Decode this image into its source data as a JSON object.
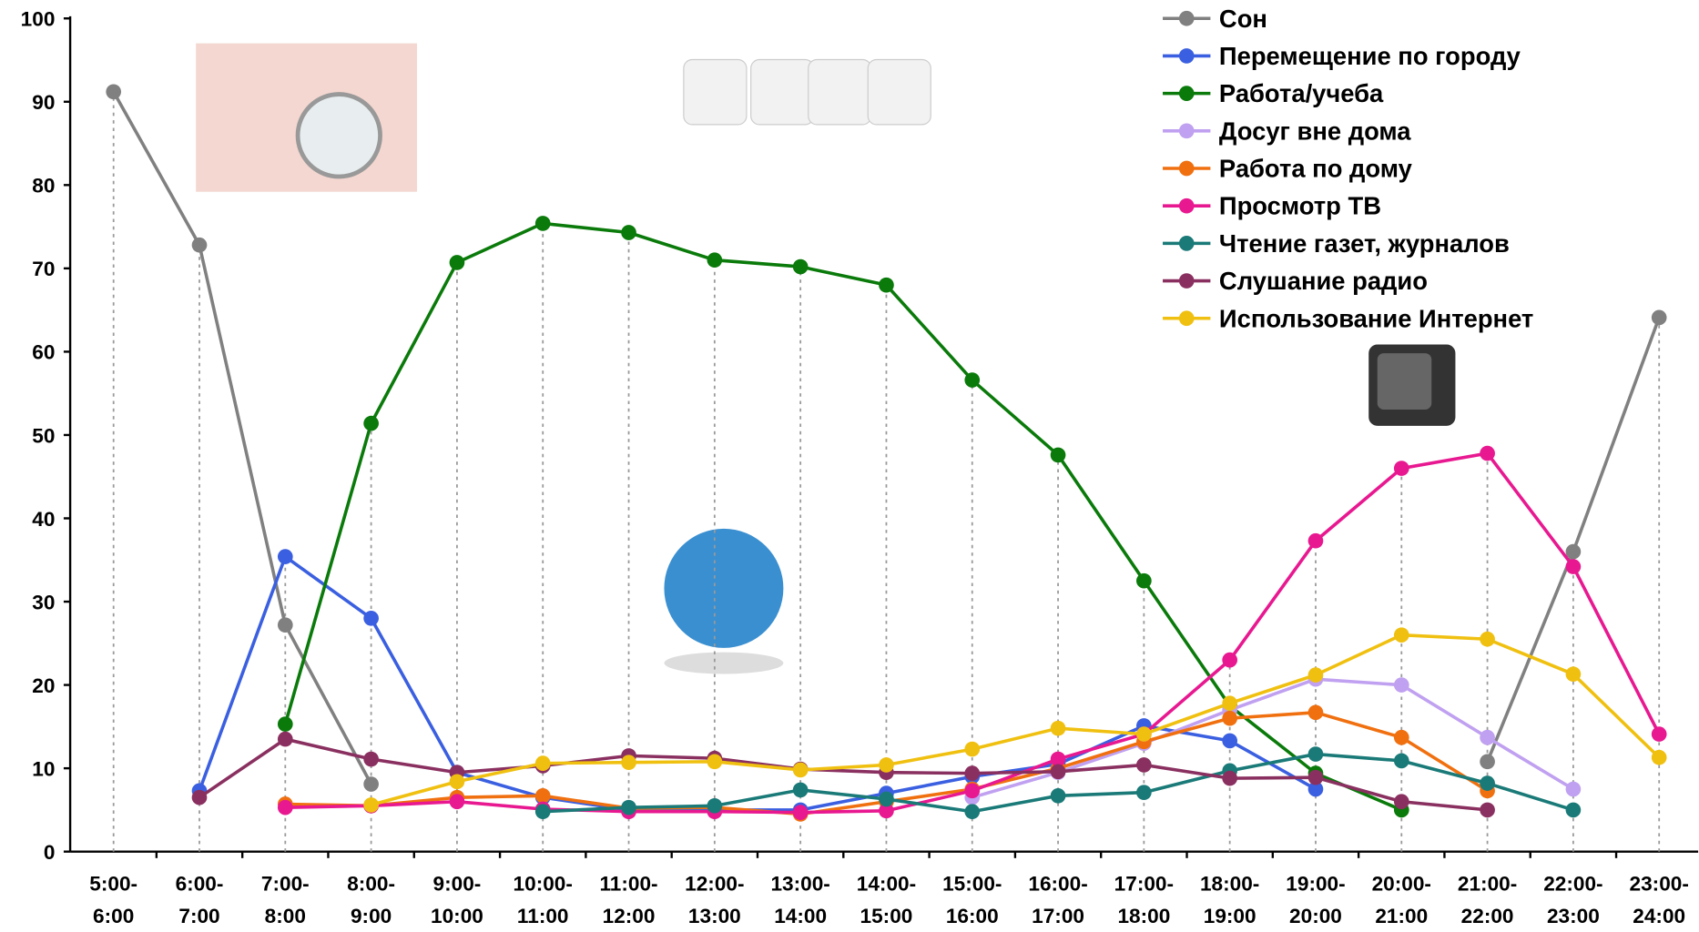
{
  "chart_data": {
    "type": "line",
    "categories": [
      "5:00-\n6:00",
      "6:00-\n7:00",
      "7:00-\n8:00",
      "8:00-\n9:00",
      "9:00-\n10:00",
      "10:00-\n11:00",
      "11:00-\n12:00",
      "12:00-\n13:00",
      "13:00-\n14:00",
      "14:00-\n15:00",
      "15:00-\n16:00",
      "16:00-\n17:00",
      "17:00-\n18:00",
      "18:00-\n19:00",
      "19:00-\n20:00",
      "20:00-\n21:00",
      "21:00-\n22:00",
      "22:00-\n23:00",
      "23:00-\n24:00"
    ],
    "series": [
      {
        "name": "Сон",
        "color": "#808080",
        "values": [
          91.2,
          72.8,
          27.2,
          8.1,
          null,
          null,
          null,
          null,
          null,
          null,
          null,
          null,
          null,
          null,
          null,
          null,
          10.8,
          36,
          64.1
        ]
      },
      {
        "name": "Перемещение по городу",
        "color": "#3a5fe0",
        "values": [
          null,
          7.3,
          35.4,
          28,
          9.5,
          6.5,
          5,
          5,
          5,
          7,
          9,
          10.5,
          15.1,
          13.3,
          7.5,
          null,
          null,
          null,
          null
        ]
      },
      {
        "name": "Работа/учеба",
        "color": "#0a7a0a",
        "values": [
          null,
          null,
          15.3,
          51.4,
          70.7,
          75.4,
          74.3,
          71,
          70.2,
          68,
          56.6,
          47.6,
          32.5,
          17.5,
          9.4,
          5,
          null,
          null,
          null
        ]
      },
      {
        "name": "Досуг вне дома",
        "color": "#c0a0f0",
        "values": [
          null,
          null,
          null,
          null,
          null,
          null,
          null,
          null,
          null,
          null,
          6.5,
          9.5,
          13,
          17,
          20.7,
          20,
          13.7,
          7.5,
          null
        ]
      },
      {
        "name": "Работа по дому",
        "color": "#f07010",
        "values": [
          null,
          null,
          5.7,
          5.5,
          6.5,
          6.7,
          5.2,
          5.3,
          4.5,
          6,
          7.5,
          10,
          13.2,
          16,
          16.7,
          13.7,
          7.3,
          null,
          null
        ]
      },
      {
        "name": "Просмотр ТВ",
        "color": "#e81890",
        "values": [
          null,
          null,
          5.3,
          5.5,
          6,
          5.1,
          4.8,
          4.8,
          4.7,
          4.9,
          7.3,
          11.1,
          14.1,
          23,
          37.3,
          46,
          47.8,
          34.2,
          14.1
        ]
      },
      {
        "name": "Чтение газет, журналов",
        "color": "#1a7a78",
        "values": [
          null,
          null,
          null,
          null,
          null,
          4.8,
          5.3,
          5.5,
          7.4,
          6.3,
          4.8,
          6.7,
          7.1,
          9.7,
          11.7,
          10.9,
          8.2,
          5,
          null
        ]
      },
      {
        "name": "Слушание радио",
        "color": "#8a3060",
        "values": [
          null,
          6.5,
          13.5,
          11.1,
          9.5,
          10.3,
          11.5,
          11.2,
          9.9,
          9.5,
          9.4,
          9.6,
          10.4,
          8.8,
          8.9,
          6,
          5,
          null,
          null
        ]
      },
      {
        "name": "Использование Интернет",
        "color": "#f0c010",
        "values": [
          null,
          null,
          null,
          5.6,
          8.4,
          10.6,
          10.7,
          10.8,
          9.8,
          10.4,
          12.3,
          14.8,
          14.1,
          17.8,
          21.2,
          26,
          25.5,
          21.3,
          11.3
        ]
      }
    ],
    "ylim": [
      0,
      100
    ],
    "yticks": [
      0,
      10,
      20,
      30,
      40,
      50,
      60,
      70,
      80,
      90,
      100
    ],
    "grid": false,
    "legend": "top-right"
  }
}
